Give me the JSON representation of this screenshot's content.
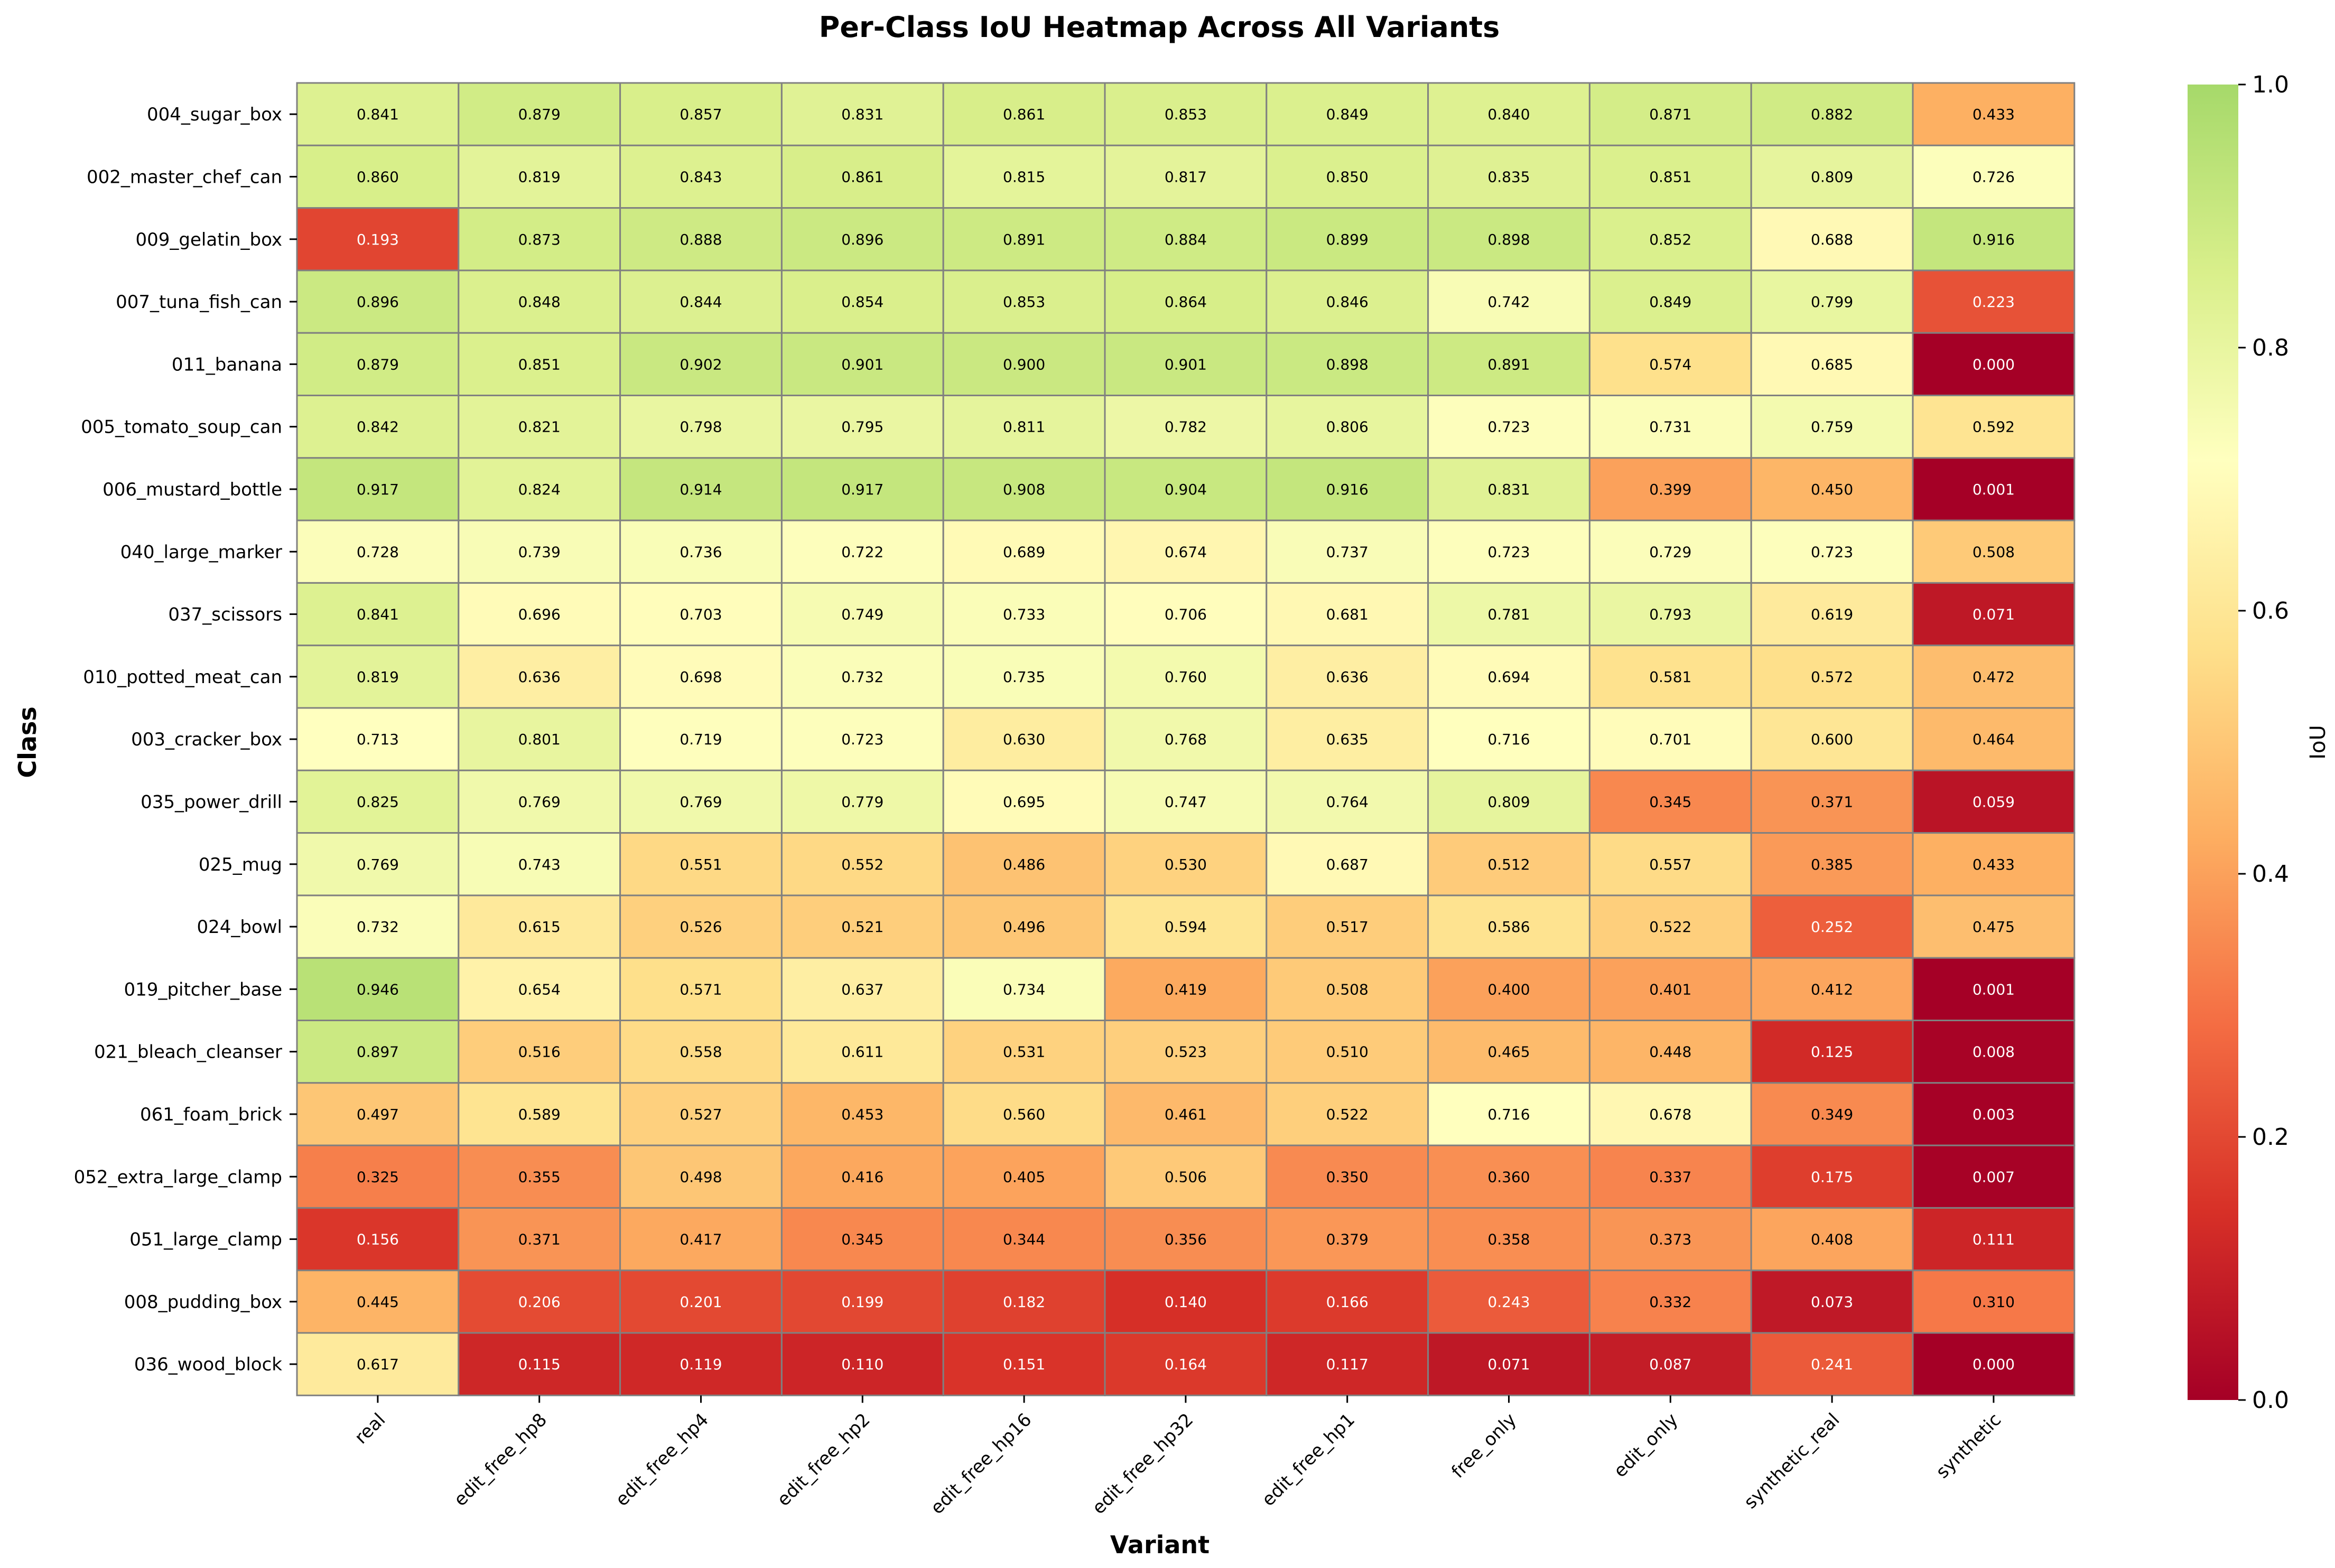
{
  "chart_data": {
    "type": "heatmap",
    "title": "Per-Class IoU Heatmap Across All Variants",
    "xlabel": "Variant",
    "ylabel": "Class",
    "colorbar_label": "IoU",
    "colorbar_ticks": [
      "0.0",
      "0.2",
      "0.4",
      "0.6",
      "0.8",
      "1.0"
    ],
    "value_range": [
      0,
      1
    ],
    "colormap": [
      "#a50026",
      "#d73027",
      "#f46d43",
      "#fdae61",
      "#fee08b",
      "#ffffbf",
      "#d9ef8b",
      "#a6d96a"
    ],
    "columns": [
      "real",
      "edit_free_hp8",
      "edit_free_hp4",
      "edit_free_hp2",
      "edit_free_hp16",
      "edit_free_hp32",
      "edit_free_hp1",
      "free_only",
      "edit_only",
      "synthetic_real",
      "synthetic"
    ],
    "rows": [
      "004_sugar_box",
      "002_master_chef_can",
      "009_gelatin_box",
      "007_tuna_fish_can",
      "011_banana",
      "005_tomato_soup_can",
      "006_mustard_bottle",
      "040_large_marker",
      "037_scissors",
      "010_potted_meat_can",
      "003_cracker_box",
      "035_power_drill",
      "025_mug",
      "024_bowl",
      "019_pitcher_base",
      "021_bleach_cleanser",
      "061_foam_brick",
      "052_extra_large_clamp",
      "051_large_clamp",
      "008_pudding_box",
      "036_wood_block"
    ],
    "values": [
      [
        "0.841",
        "0.879",
        "0.857",
        "0.831",
        "0.861",
        "0.853",
        "0.849",
        "0.840",
        "0.871",
        "0.882",
        "0.433"
      ],
      [
        "0.860",
        "0.819",
        "0.843",
        "0.861",
        "0.815",
        "0.817",
        "0.850",
        "0.835",
        "0.851",
        "0.809",
        "0.726"
      ],
      [
        "0.193",
        "0.873",
        "0.888",
        "0.896",
        "0.891",
        "0.884",
        "0.899",
        "0.898",
        "0.852",
        "0.688",
        "0.916"
      ],
      [
        "0.896",
        "0.848",
        "0.844",
        "0.854",
        "0.853",
        "0.864",
        "0.846",
        "0.742",
        "0.849",
        "0.799",
        "0.223"
      ],
      [
        "0.879",
        "0.851",
        "0.902",
        "0.901",
        "0.900",
        "0.901",
        "0.898",
        "0.891",
        "0.574",
        "0.685",
        "0.000"
      ],
      [
        "0.842",
        "0.821",
        "0.798",
        "0.795",
        "0.811",
        "0.782",
        "0.806",
        "0.723",
        "0.731",
        "0.759",
        "0.592"
      ],
      [
        "0.917",
        "0.824",
        "0.914",
        "0.917",
        "0.908",
        "0.904",
        "0.916",
        "0.831",
        "0.399",
        "0.450",
        "0.001"
      ],
      [
        "0.728",
        "0.739",
        "0.736",
        "0.722",
        "0.689",
        "0.674",
        "0.737",
        "0.723",
        "0.729",
        "0.723",
        "0.508"
      ],
      [
        "0.841",
        "0.696",
        "0.703",
        "0.749",
        "0.733",
        "0.706",
        "0.681",
        "0.781",
        "0.793",
        "0.619",
        "0.071"
      ],
      [
        "0.819",
        "0.636",
        "0.698",
        "0.732",
        "0.735",
        "0.760",
        "0.636",
        "0.694",
        "0.581",
        "0.572",
        "0.472"
      ],
      [
        "0.713",
        "0.801",
        "0.719",
        "0.723",
        "0.630",
        "0.768",
        "0.635",
        "0.716",
        "0.701",
        "0.600",
        "0.464"
      ],
      [
        "0.825",
        "0.769",
        "0.769",
        "0.779",
        "0.695",
        "0.747",
        "0.764",
        "0.809",
        "0.345",
        "0.371",
        "0.059"
      ],
      [
        "0.769",
        "0.743",
        "0.551",
        "0.552",
        "0.486",
        "0.530",
        "0.687",
        "0.512",
        "0.557",
        "0.385",
        "0.433"
      ],
      [
        "0.732",
        "0.615",
        "0.526",
        "0.521",
        "0.496",
        "0.594",
        "0.517",
        "0.586",
        "0.522",
        "0.252",
        "0.475"
      ],
      [
        "0.946",
        "0.654",
        "0.571",
        "0.637",
        "0.734",
        "0.419",
        "0.508",
        "0.400",
        "0.401",
        "0.412",
        "0.001"
      ],
      [
        "0.897",
        "0.516",
        "0.558",
        "0.611",
        "0.531",
        "0.523",
        "0.510",
        "0.465",
        "0.448",
        "0.125",
        "0.008"
      ],
      [
        "0.497",
        "0.589",
        "0.527",
        "0.453",
        "0.560",
        "0.461",
        "0.522",
        "0.716",
        "0.678",
        "0.349",
        "0.003"
      ],
      [
        "0.325",
        "0.355",
        "0.498",
        "0.416",
        "0.405",
        "0.506",
        "0.350",
        "0.360",
        "0.337",
        "0.175",
        "0.007"
      ],
      [
        "0.156",
        "0.371",
        "0.417",
        "0.345",
        "0.344",
        "0.356",
        "0.379",
        "0.358",
        "0.373",
        "0.408",
        "0.111"
      ],
      [
        "0.445",
        "0.206",
        "0.201",
        "0.199",
        "0.182",
        "0.140",
        "0.166",
        "0.243",
        "0.332",
        "0.073",
        "0.310"
      ],
      [
        "0.617",
        "0.115",
        "0.119",
        "0.110",
        "0.151",
        "0.164",
        "0.117",
        "0.071",
        "0.087",
        "0.241",
        "0.000"
      ]
    ]
  }
}
